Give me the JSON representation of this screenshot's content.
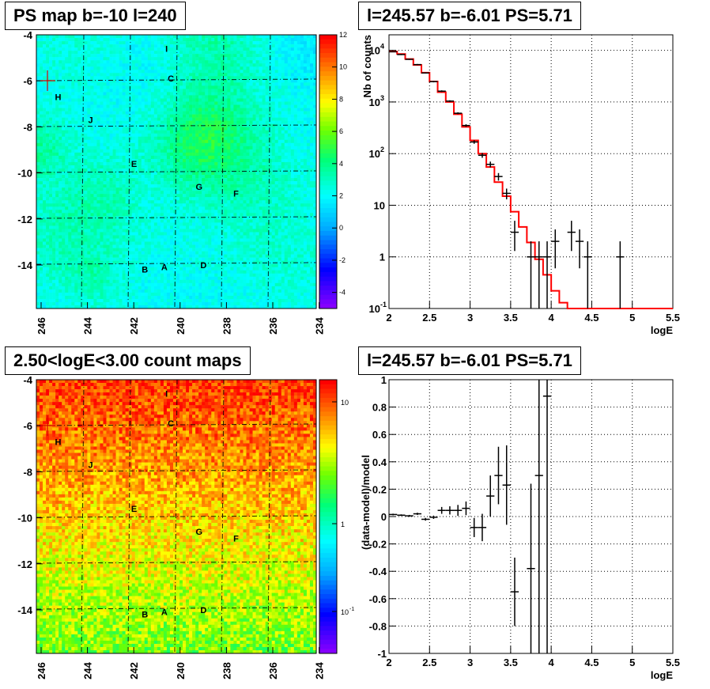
{
  "ps_map": {
    "title": "PS map b=-10 l=240",
    "type": "heatmap",
    "x_ticks": [
      "246",
      "244",
      "242",
      "240",
      "238",
      "236",
      "234"
    ],
    "x_tick_values": [
      246,
      244,
      242,
      240,
      238,
      236,
      234
    ],
    "x_range": [
      246.5,
      233.6
    ],
    "y_ticks": [
      "-4",
      "-6",
      "-8",
      "-10",
      "-12",
      "-14"
    ],
    "y_tick_values": [
      -4,
      -6,
      -8,
      -10,
      -12,
      -14
    ],
    "y_range": [
      -15.9,
      -4.0
    ],
    "colorbar_ticks": [
      "12",
      "10",
      "8",
      "6",
      "4",
      "2",
      "0",
      "-2",
      "-4"
    ],
    "colorbar_values": [
      12,
      10,
      8,
      6,
      4,
      2,
      0,
      -2,
      -4
    ],
    "colorbar_range": [
      -5,
      12
    ],
    "grid": true,
    "sources": [
      {
        "label": "I",
        "l": 240.5,
        "b": -4.6
      },
      {
        "label": "C",
        "l": 240.3,
        "b": -5.9
      },
      {
        "label": "H",
        "l": 245.5,
        "b": -6.7
      },
      {
        "label": "J",
        "l": 244.0,
        "b": -7.7
      },
      {
        "label": "E",
        "l": 242.0,
        "b": -9.6
      },
      {
        "label": "G",
        "l": 239.0,
        "b": -10.6
      },
      {
        "label": "F",
        "l": 237.3,
        "b": -10.9
      },
      {
        "label": "B",
        "l": 241.5,
        "b": -14.2
      },
      {
        "label": "A",
        "l": 240.6,
        "b": -14.1
      },
      {
        "label": "D",
        "l": 238.8,
        "b": -14.0
      }
    ]
  },
  "count_map": {
    "title": "2.50<logE<3.00 count maps",
    "type": "heatmap",
    "x_ticks": [
      "246",
      "244",
      "242",
      "240",
      "238",
      "236",
      "234"
    ],
    "y_ticks": [
      "-4",
      "-6",
      "-8",
      "-10",
      "-12",
      "-14"
    ],
    "colorbar_ticks": [
      "10",
      "1",
      "10-1"
    ],
    "colorbar_labels": {
      "tick_10": "10",
      "tick_1": "1",
      "tick_01_base": "10",
      "tick_01_exp": "-1"
    },
    "colorbar_log": true,
    "grid": true
  },
  "spectrum": {
    "title": "l=245.57 b=-6.01 PS=5.71",
    "type": "line",
    "xlabel": "logE",
    "ylabel": "Nb of counts",
    "xlim": [
      2,
      5.5
    ],
    "ylim": [
      0.1,
      20000
    ],
    "log_y": true,
    "grid": true,
    "x_ticks": [
      "2",
      "2.5",
      "3",
      "3.5",
      "4",
      "4.5",
      "5",
      "5.5"
    ],
    "y_tick_labels": {
      "tenth_base": "10",
      "tenth_exp": "-1",
      "one": "1",
      "ten": "10",
      "hundred_base": "10",
      "hundred_exp": "2",
      "thousand_base": "10",
      "thousand_exp": "3",
      "tenk_base": "10",
      "tenk_exp": "4"
    },
    "model": [
      {
        "x0": 2.0,
        "x1": 2.1,
        "y": 9500
      },
      {
        "x0": 2.1,
        "x1": 2.2,
        "y": 8500
      },
      {
        "x0": 2.2,
        "x1": 2.3,
        "y": 6800
      },
      {
        "x0": 2.3,
        "x1": 2.4,
        "y": 5200
      },
      {
        "x0": 2.4,
        "x1": 2.5,
        "y": 3700
      },
      {
        "x0": 2.5,
        "x1": 2.6,
        "y": 2500
      },
      {
        "x0": 2.6,
        "x1": 2.7,
        "y": 1550
      },
      {
        "x0": 2.7,
        "x1": 2.8,
        "y": 1000
      },
      {
        "x0": 2.8,
        "x1": 2.9,
        "y": 580
      },
      {
        "x0": 2.9,
        "x1": 3.0,
        "y": 330
      },
      {
        "x0": 3.0,
        "x1": 3.1,
        "y": 180
      },
      {
        "x0": 3.1,
        "x1": 3.2,
        "y": 100
      },
      {
        "x0": 3.2,
        "x1": 3.3,
        "y": 55
      },
      {
        "x0": 3.3,
        "x1": 3.4,
        "y": 28
      },
      {
        "x0": 3.4,
        "x1": 3.5,
        "y": 15
      },
      {
        "x0": 3.5,
        "x1": 3.6,
        "y": 7.5
      },
      {
        "x0": 3.6,
        "x1": 3.7,
        "y": 3.8
      },
      {
        "x0": 3.7,
        "x1": 3.8,
        "y": 1.9
      },
      {
        "x0": 3.8,
        "x1": 3.9,
        "y": 0.9
      },
      {
        "x0": 3.9,
        "x1": 4.0,
        "y": 0.45
      },
      {
        "x0": 4.0,
        "x1": 4.1,
        "y": 0.22
      },
      {
        "x0": 4.1,
        "x1": 4.2,
        "y": 0.13
      },
      {
        "x0": 4.2,
        "x1": 5.5,
        "y": 0.1
      }
    ],
    "data": [
      {
        "x": 2.05,
        "y": 9400,
        "lo": 9200,
        "hi": 9600
      },
      {
        "x": 2.15,
        "y": 8300,
        "lo": 8100,
        "hi": 8500
      },
      {
        "x": 2.25,
        "y": 6700,
        "lo": 6550,
        "hi": 6850
      },
      {
        "x": 2.35,
        "y": 5300,
        "lo": 5150,
        "hi": 5450
      },
      {
        "x": 2.45,
        "y": 3650,
        "lo": 3550,
        "hi": 3750
      },
      {
        "x": 2.55,
        "y": 2480,
        "lo": 2400,
        "hi": 2560
      },
      {
        "x": 2.65,
        "y": 1620,
        "lo": 1560,
        "hi": 1680
      },
      {
        "x": 2.75,
        "y": 1040,
        "lo": 1000,
        "hi": 1080
      },
      {
        "x": 2.85,
        "y": 605,
        "lo": 580,
        "hi": 630
      },
      {
        "x": 2.95,
        "y": 350,
        "lo": 330,
        "hi": 370
      },
      {
        "x": 3.05,
        "y": 168,
        "lo": 155,
        "hi": 181
      },
      {
        "x": 3.15,
        "y": 93,
        "lo": 83,
        "hi": 103
      },
      {
        "x": 3.25,
        "y": 62,
        "lo": 54,
        "hi": 70
      },
      {
        "x": 3.35,
        "y": 36,
        "lo": 30,
        "hi": 42
      },
      {
        "x": 3.45,
        "y": 17,
        "lo": 13,
        "hi": 21
      },
      {
        "x": 3.55,
        "y": 3,
        "lo": 1.3,
        "hi": 5
      },
      {
        "x": 3.75,
        "y": 1,
        "lo": 0.1,
        "hi": 2
      },
      {
        "x": 3.85,
        "y": 1,
        "lo": 0.1,
        "hi": 2
      },
      {
        "x": 3.95,
        "y": 1,
        "lo": 0.1,
        "hi": 2
      },
      {
        "x": 4.05,
        "y": 2,
        "lo": 0.6,
        "hi": 3.4
      },
      {
        "x": 4.25,
        "y": 3,
        "lo": 1.3,
        "hi": 5
      },
      {
        "x": 4.35,
        "y": 2,
        "lo": 0.6,
        "hi": 3.4
      },
      {
        "x": 4.45,
        "y": 1,
        "lo": 0.1,
        "hi": 2
      },
      {
        "x": 4.85,
        "y": 1,
        "lo": 0.1,
        "hi": 2
      }
    ],
    "model_color": "#ff0000",
    "data_color": "#000000"
  },
  "residuals": {
    "title": "l=245.57 b=-6.01 PS=5.71",
    "type": "scatter",
    "xlabel": "logE",
    "ylabel": "(data-model)/model",
    "xlim": [
      2,
      5.5
    ],
    "ylim": [
      -1,
      1
    ],
    "grid": true,
    "x_ticks": [
      "2",
      "2.5",
      "3",
      "3.5",
      "4",
      "4.5",
      "5",
      "5.5"
    ],
    "y_ticks": [
      "1",
      "0.8",
      "0.6",
      "0.4",
      "0.2",
      "0",
      "-0.2",
      "-0.4",
      "-0.6",
      "-0.8",
      "-1"
    ],
    "y_tick_values": [
      1,
      0.8,
      0.6,
      0.4,
      0.2,
      0,
      -0.2,
      -0.4,
      -0.6,
      -0.8,
      -1
    ],
    "data": [
      {
        "x": 2.05,
        "y": 0.015,
        "err": 0.006
      },
      {
        "x": 2.15,
        "y": 0.01,
        "err": 0.006
      },
      {
        "x": 2.25,
        "y": 0.005,
        "err": 0.007
      },
      {
        "x": 2.35,
        "y": 0.02,
        "err": 0.008
      },
      {
        "x": 2.45,
        "y": -0.02,
        "err": 0.01
      },
      {
        "x": 2.55,
        "y": -0.005,
        "err": 0.012
      },
      {
        "x": 2.65,
        "y": 0.045,
        "err": 0.025
      },
      {
        "x": 2.75,
        "y": 0.045,
        "err": 0.03
      },
      {
        "x": 2.85,
        "y": 0.045,
        "err": 0.04
      },
      {
        "x": 2.95,
        "y": 0.06,
        "err": 0.05
      },
      {
        "x": 3.05,
        "y": -0.08,
        "err": 0.07
      },
      {
        "x": 3.15,
        "y": -0.08,
        "err": 0.1
      },
      {
        "x": 3.25,
        "y": 0.15,
        "err": 0.15
      },
      {
        "x": 3.35,
        "y": 0.3,
        "err": 0.21
      },
      {
        "x": 3.45,
        "y": 0.23,
        "err": 0.29
      },
      {
        "x": 3.55,
        "y": -0.55,
        "err": 0.25
      },
      {
        "x": 3.75,
        "y": -0.38,
        "err": 0.62
      },
      {
        "x": 3.85,
        "y": 0.3,
        "err": 1.3
      },
      {
        "x": 3.95,
        "y": 0.88,
        "err": 1.9
      }
    ]
  }
}
